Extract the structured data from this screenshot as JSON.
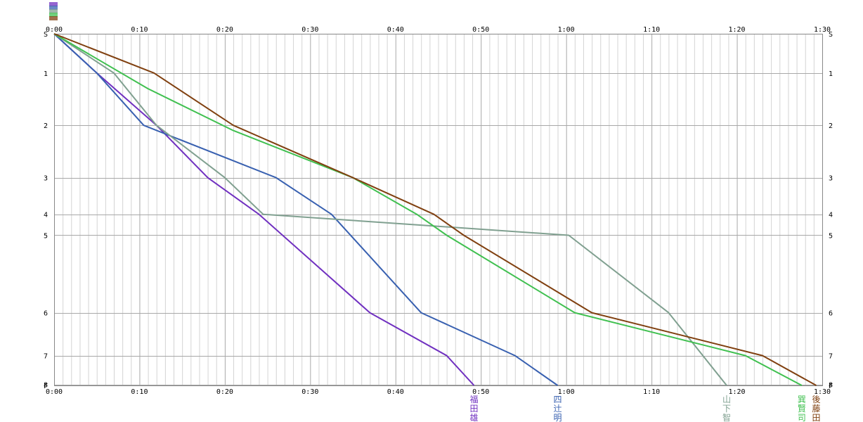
{
  "chart_data": {
    "type": "line",
    "title": "",
    "xlabel": "",
    "ylabel": "",
    "x_unit": "minutes",
    "xlim": [
      0,
      90
    ],
    "x_ticks": [
      {
        "v": 0,
        "label": "0:00"
      },
      {
        "v": 10,
        "label": "0:10"
      },
      {
        "v": 20,
        "label": "0:20"
      },
      {
        "v": 30,
        "label": "0:30"
      },
      {
        "v": 40,
        "label": "0:40"
      },
      {
        "v": 50,
        "label": "0:50"
      },
      {
        "v": 60,
        "label": "1:00"
      },
      {
        "v": 70,
        "label": "1:10"
      },
      {
        "v": 80,
        "label": "1:20"
      },
      {
        "v": 90,
        "label": "1:30"
      }
    ],
    "checkpoints": [
      {
        "label": "S",
        "d": 0
      },
      {
        "label": "1",
        "d": 0.75
      },
      {
        "label": "2",
        "d": 1.75
      },
      {
        "label": "3",
        "d": 2.75
      },
      {
        "label": "4",
        "d": 3.45
      },
      {
        "label": "5",
        "d": 3.85
      },
      {
        "label": "6",
        "d": 5.33
      },
      {
        "label": "7",
        "d": 6.15
      },
      {
        "label": "8",
        "d": 6.7
      },
      {
        "label": "F",
        "d": 6.72
      }
    ],
    "series": [
      {
        "name": "福田雄",
        "color": "#7030c0",
        "x": [
          0,
          5,
          12,
          18,
          24,
          37,
          46,
          49.2
        ],
        "y": [
          0,
          0.75,
          1.75,
          2.75,
          3.45,
          5.33,
          6.15,
          6.72
        ]
      },
      {
        "name": "四辻明",
        "color": "#3860b0",
        "x": [
          0,
          5,
          10.5,
          26,
          32.5,
          43,
          54,
          59
        ],
        "y": [
          0,
          0.75,
          1.75,
          2.75,
          3.45,
          5.33,
          6.15,
          6.72
        ]
      },
      {
        "name": "山下智",
        "color": "#80a090",
        "x": [
          0,
          7,
          12,
          20,
          24.5,
          60.3,
          72,
          78.8
        ],
        "y": [
          0,
          0.75,
          1.75,
          2.75,
          3.45,
          3.85,
          5.33,
          6.72
        ]
      },
      {
        "name": "巽賢司",
        "color": "#40c050",
        "x": [
          0,
          11,
          21,
          35,
          42.5,
          46,
          61,
          81,
          87.6
        ],
        "y": [
          0,
          1.05,
          1.85,
          2.75,
          3.45,
          3.85,
          5.33,
          6.15,
          6.72
        ]
      },
      {
        "name": "後藤田",
        "color": "#804010",
        "x": [
          0,
          11.7,
          21,
          35,
          44.5,
          48,
          63,
          83,
          89.3
        ],
        "y": [
          0,
          0.75,
          1.75,
          2.75,
          3.45,
          3.85,
          5.33,
          6.15,
          6.72
        ]
      }
    ]
  }
}
